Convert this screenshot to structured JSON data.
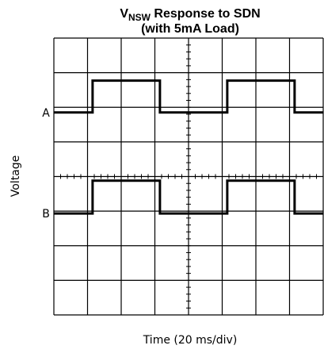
{
  "chart_data": {
    "type": "line",
    "title_parts": [
      "V",
      "NSW",
      " Response to SDN",
      "(with 5mA Load)"
    ],
    "x_label": "Time (20 ms/div)",
    "y_label": "Voltage",
    "x": [
      0,
      23,
      23,
      63,
      63,
      103,
      103,
      143,
      143,
      160
    ],
    "series": [
      {
        "name": "A",
        "color": "#000000",
        "values": [
          5.85,
          5.85,
          6.77,
          6.77,
          5.85,
          5.85,
          6.77,
          6.77,
          5.85,
          5.85
        ]
      },
      {
        "name": "B",
        "color": "#000000",
        "values": [
          2.93,
          2.93,
          3.88,
          3.88,
          2.93,
          2.93,
          3.88,
          3.88,
          2.93,
          2.93
        ]
      }
    ],
    "xlim": [
      0,
      160
    ],
    "ylim": [
      0,
      8
    ],
    "xticks": [
      0,
      20,
      40,
      60,
      80,
      100,
      120,
      140,
      160
    ],
    "yticks": [
      0,
      1,
      2,
      3,
      4,
      5,
      6,
      7,
      8
    ],
    "grid": true
  }
}
